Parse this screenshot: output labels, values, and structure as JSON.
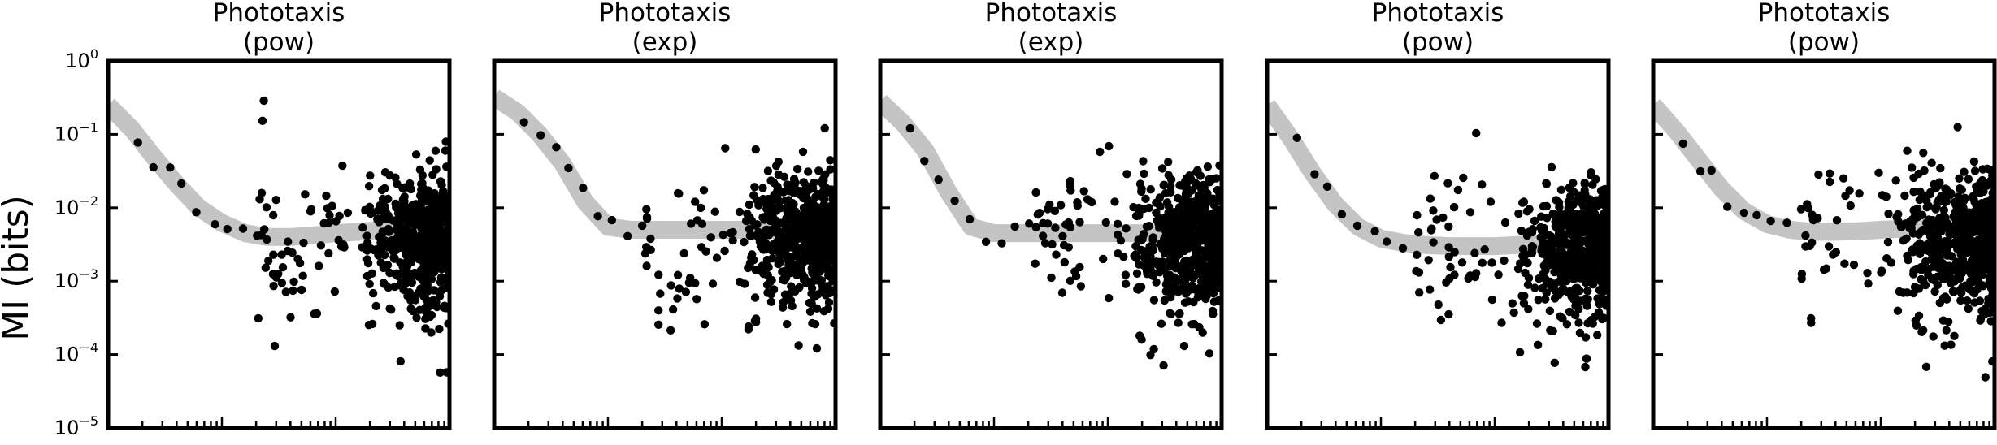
{
  "chart_data": {
    "type": "scatter",
    "ylabel": "MI (bits)",
    "yscale": "log",
    "ylim": [
      1e-05,
      1
    ],
    "y_ticks": [
      {
        "value": 1,
        "base": "10",
        "exp": "0"
      },
      {
        "value": 0.1,
        "base": "10",
        "exp": "−1"
      },
      {
        "value": 0.01,
        "base": "10",
        "exp": "−2"
      },
      {
        "value": 0.001,
        "base": "10",
        "exp": "−3"
      },
      {
        "value": 0.0001,
        "base": "10",
        "exp": "−4"
      },
      {
        "value": 1e-05,
        "base": "10",
        "exp": "−5"
      }
    ],
    "xscale": "log",
    "xlim": [
      1,
      1000
    ],
    "x_tick_labels_shown": false,
    "grid": false,
    "point_color": "#000000",
    "fit_color": "#c4c4c4",
    "panels": [
      {
        "title": "Phototaxis",
        "model": "(pow)",
        "fit_curve": {
          "x": [
            1,
            1.6,
            2.5,
            4,
            6.3,
            10,
            16,
            25,
            40,
            63,
            100,
            160,
            250,
            400,
            630,
            1000
          ],
          "y": [
            0.25,
            0.12,
            0.05,
            0.021,
            0.01,
            0.0062,
            0.0045,
            0.004,
            0.004,
            0.0042,
            0.0045,
            0.0047,
            0.005,
            0.0052,
            0.0055,
            0.0058
          ]
        },
        "seed": 11,
        "plateau": 0.0045
      },
      {
        "title": "Phototaxis",
        "model": "(exp)",
        "fit_curve": {
          "x": [
            1,
            1.6,
            2.5,
            4,
            6.3,
            10,
            16,
            25,
            40,
            63,
            100,
            160,
            250,
            400,
            630,
            1000
          ],
          "y": [
            0.32,
            0.2,
            0.1,
            0.04,
            0.012,
            0.0055,
            0.005,
            0.005,
            0.005,
            0.005,
            0.005,
            0.005,
            0.005,
            0.005,
            0.005,
            0.005
          ]
        },
        "seed": 23,
        "plateau": 0.005
      },
      {
        "title": "Phototaxis",
        "model": "(exp)",
        "fit_curve": {
          "x": [
            1,
            1.6,
            2.5,
            4,
            6.3,
            10,
            16,
            25,
            40,
            63,
            100,
            160,
            250,
            400,
            630,
            1000
          ],
          "y": [
            0.28,
            0.14,
            0.06,
            0.016,
            0.0055,
            0.0045,
            0.0045,
            0.0045,
            0.0045,
            0.0045,
            0.0045,
            0.0045,
            0.0045,
            0.0045,
            0.0045,
            0.0045
          ]
        },
        "seed": 37,
        "plateau": 0.0045
      },
      {
        "title": "Phototaxis",
        "model": "(pow)",
        "fit_curve": {
          "x": [
            1,
            1.6,
            2.5,
            4,
            6.3,
            10,
            16,
            25,
            40,
            63,
            100,
            160,
            250,
            400,
            630,
            1000
          ],
          "y": [
            0.25,
            0.09,
            0.03,
            0.011,
            0.0055,
            0.0038,
            0.0033,
            0.0031,
            0.003,
            0.003,
            0.003,
            0.0031,
            0.0032,
            0.0033,
            0.0035,
            0.0036
          ]
        },
        "seed": 51,
        "plateau": 0.0035
      },
      {
        "title": "Phototaxis",
        "model": "(pow)",
        "fit_curve": {
          "x": [
            1,
            1.6,
            2.5,
            4,
            6.3,
            10,
            16,
            25,
            40,
            63,
            100,
            160,
            250,
            400,
            630,
            1000
          ],
          "y": [
            0.25,
            0.11,
            0.045,
            0.018,
            0.009,
            0.006,
            0.005,
            0.0047,
            0.0047,
            0.0048,
            0.005,
            0.0052,
            0.0055,
            0.0058,
            0.006,
            0.0062
          ]
        },
        "seed": 67,
        "plateau": 0.005
      }
    ]
  }
}
